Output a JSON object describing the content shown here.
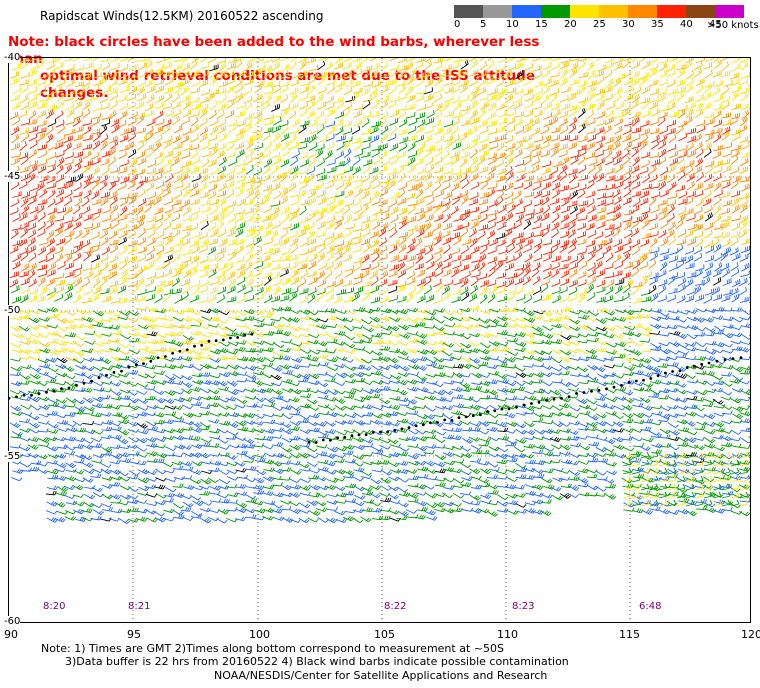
{
  "title": "Rapidscat Winds(12.5KM) 20160522 ascending",
  "note": {
    "line1": "Note: black circles have been added to the wind barbs, wherever less than",
    "line2": "optimal wind retrieval conditions are met due to the ISS attitude changes."
  },
  "scale": {
    "labels": [
      "0",
      "5",
      "10",
      "15",
      "20",
      "25",
      "30",
      "35",
      "40",
      "45",
      ">50 knots"
    ],
    "colors": [
      "#555555",
      "#999999",
      "#2266ff",
      "#009900",
      "#ffe400",
      "#ffc000",
      "#ff8800",
      "#ff2200",
      "#8b4513",
      "#cc00cc",
      "#440088"
    ]
  },
  "latitude_labels": [
    "-40",
    "-45",
    "-50",
    "-55",
    "-60"
  ],
  "longitude_labels": [
    "90",
    "95",
    "100",
    "105",
    "110",
    "115",
    "120"
  ],
  "pass_times": [
    "8:20",
    "8:21",
    "8:22",
    "8:23",
    "6:48"
  ],
  "footer": {
    "line1": "Note: 1) Times are GMT 2)Times along bottom correspond to measurement at ~50S",
    "line2": "3)Data buffer is 22 hrs from 20160522 4) Black wind barbs indicate possible contamination",
    "credit": "NOAA/NESDIS/Center for Satellite Applications and Research"
  }
}
